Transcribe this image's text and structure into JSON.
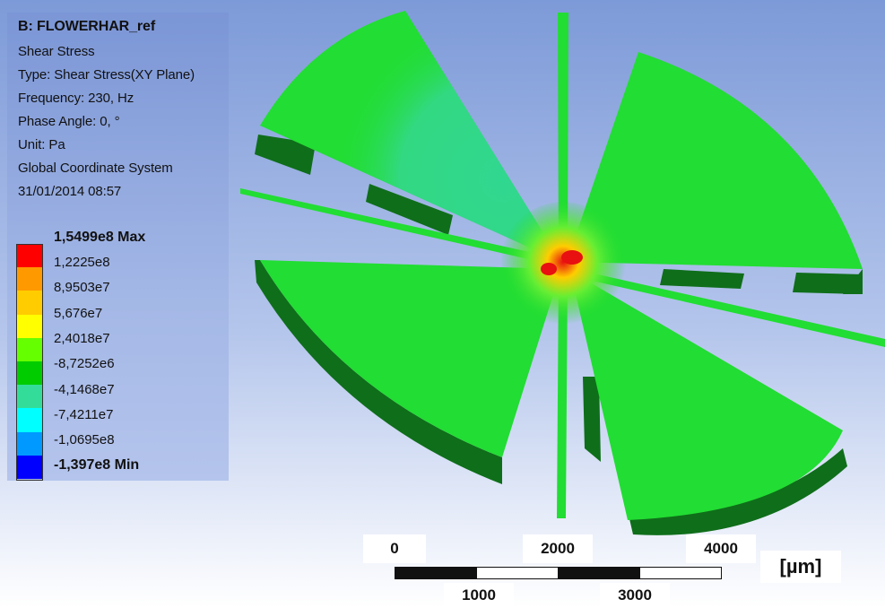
{
  "result_info": {
    "title": "B: FLOWERHAR_ref",
    "lines": [
      "Shear Stress",
      "Type: Shear Stress(XY Plane)",
      "Frequency: 230, Hz",
      "Phase Angle: 0, °",
      "Unit: Pa",
      "Global Coordinate System",
      "31/01/2014 08:57"
    ]
  },
  "legend": {
    "max_label": "1,5499e8 Max",
    "min_label": "-1,397e8 Min",
    "levels": [
      "1,2225e8",
      "8,9503e7",
      "5,676e7",
      "2,4018e7",
      "-8,7252e6",
      "-4,1468e7",
      "-7,4211e7",
      "-1,0695e8"
    ],
    "colors": [
      "#ff0000",
      "#ff9900",
      "#ffcc00",
      "#ffff00",
      "#66ff00",
      "#00cc00",
      "#33dd99",
      "#00ffff",
      "#0099ff",
      "#0000ff"
    ]
  },
  "scale_bar": {
    "top_labels": [
      "0",
      "2000",
      "4000"
    ],
    "bottom_labels": [
      "1000",
      "3000"
    ],
    "unit": "[µm]"
  },
  "model_colors": {
    "surface": "#22dd33",
    "side": "#0f6e1a",
    "hot": "#e81010",
    "cool": "#33d6a0"
  }
}
